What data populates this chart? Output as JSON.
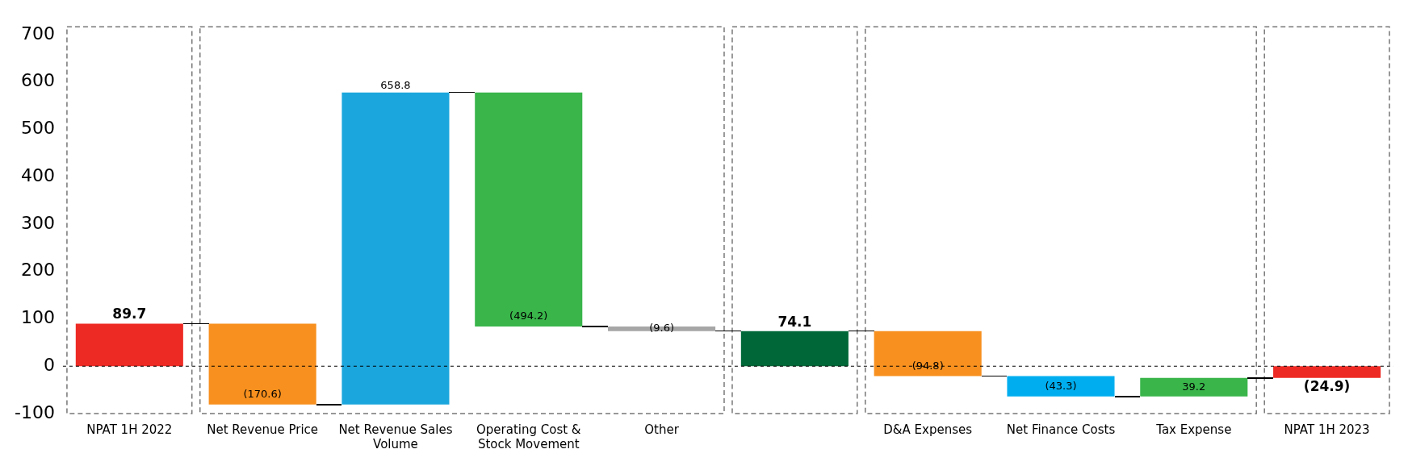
{
  "chart_data": {
    "type": "bar",
    "categories": [
      "NPAT 1H 2022",
      "Net Revenue Price",
      "Net Revenue Sales Volume",
      "Operating Cost & Stock Movement",
      "Other",
      null,
      "D&A Expenses",
      "Net Finance Costs",
      "Tax Expense",
      "NPAT 1H 2023"
    ],
    "values": [
      89.7,
      -170.6,
      658.8,
      -494.2,
      -9.6,
      74.1,
      -94.8,
      -43.3,
      39.2,
      -24.9
    ],
    "base": [
      0,
      89.7,
      -80.9,
      577.9,
      83.7,
      0,
      74.1,
      -20.7,
      -64.0,
      0
    ],
    "colors": [
      "#ee2a24",
      "#f7901e",
      "#1ba6dd",
      "#39b54a",
      "#a6a6a6",
      "#006838",
      "#f7901e",
      "#00aeef",
      "#39b54a",
      "#ee2a24"
    ],
    "value_labels": [
      "89.7",
      "(170.6)",
      "658.8",
      "(494.2)",
      "(9.6)",
      "74.1",
      "(94.8)",
      "(43.3)",
      "39.2",
      "(24.9)"
    ],
    "ylim": [
      -100,
      720
    ],
    "yticks": [
      -100,
      0,
      100,
      200,
      300,
      400,
      500,
      600,
      700
    ],
    "ref_lines": [
      {
        "axis": "y",
        "value": 0,
        "line_style": "dashed",
        "color": "#000000"
      }
    ],
    "grid": false,
    "legend": false
  }
}
